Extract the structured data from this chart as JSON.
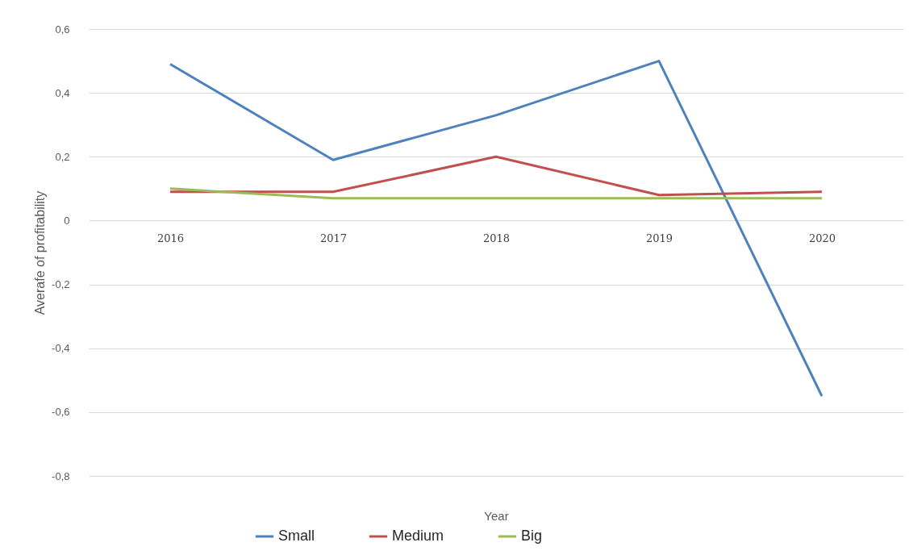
{
  "chart_data": {
    "type": "line",
    "xlabel": "Year",
    "ylabel": "Averafe of profitability",
    "categories": [
      "2016",
      "2017",
      "2018",
      "2019",
      "2020"
    ],
    "series": [
      {
        "name": "Small",
        "color": "#4f81bd",
        "values": [
          0.49,
          0.19,
          0.33,
          0.5,
          -0.55
        ]
      },
      {
        "name": "Medium",
        "color": "#c0504d",
        "values": [
          0.09,
          0.09,
          0.2,
          0.08,
          0.09
        ]
      },
      {
        "name": "Big",
        "color": "#9bbb59",
        "values": [
          0.1,
          0.07,
          0.07,
          0.07,
          0.07
        ]
      }
    ],
    "ylim": [
      -0.8,
      0.6
    ],
    "yticks": [
      {
        "value": -0.8,
        "label": "-0,8"
      },
      {
        "value": -0.6,
        "label": "-0,6"
      },
      {
        "value": -0.4,
        "label": "-0,4"
      },
      {
        "value": -0.2,
        "label": "-0,2"
      },
      {
        "value": 0,
        "label": "0"
      },
      {
        "value": 0.2,
        "label": "0,2"
      },
      {
        "value": 0.4,
        "label": "0,4"
      },
      {
        "value": 0.6,
        "label": "0,6"
      }
    ],
    "grid": "y",
    "legend": "bottom",
    "marker": "none",
    "line_style": "solid"
  }
}
